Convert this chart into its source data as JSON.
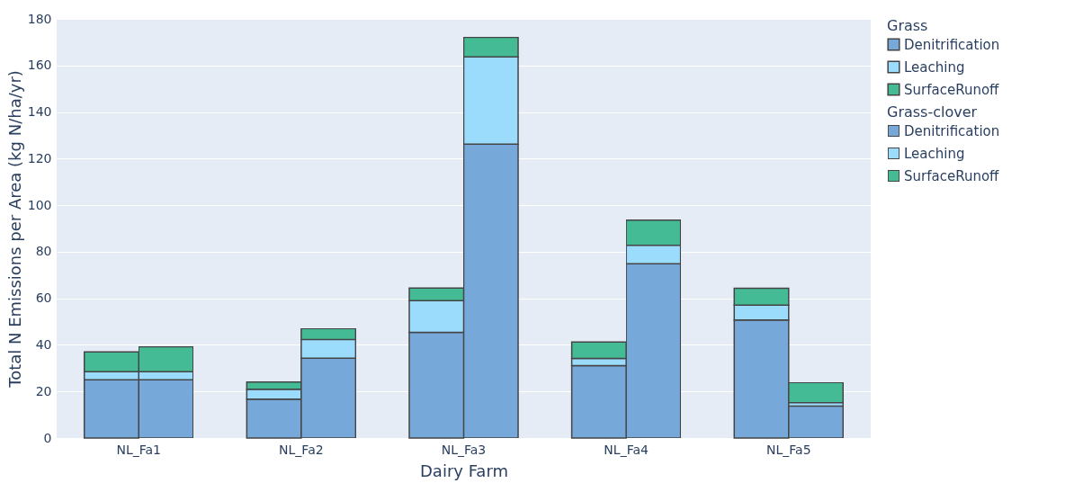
{
  "chart_data": {
    "type": "bar",
    "xlabel": "Dairy Farm",
    "ylabel": "Total N Emissions per Area (kg N/ha/yr)",
    "legend_title": [
      "Grass",
      "Grass-clover"
    ],
    "legend": "right",
    "grid": "y",
    "categories": [
      "NL_Fa1",
      "NL_Fa2",
      "NL_Fa3",
      "NL_Fa4",
      "NL_Fa5"
    ],
    "ylim": [
      0,
      180
    ],
    "yticks": [
      0,
      20,
      40,
      60,
      80,
      100,
      120,
      140,
      160,
      180
    ],
    "series": [
      {
        "name": "Denitrification",
        "color": "#77a8da",
        "values": [
          25,
          16.7,
          45.4,
          31.1,
          50.7
        ],
        "base": [
          0,
          0,
          0,
          0,
          0
        ]
      },
      {
        "name": "Leaching",
        "color": "#9bdcfd",
        "values": [
          3.5,
          4.3,
          13.6,
          3.1,
          6.4
        ],
        "base": [
          25,
          16.7,
          45.4,
          31.1,
          50.7
        ]
      },
      {
        "name": "SurfaceRunoff",
        "color": "#45bb95",
        "values": [
          8.5,
          3,
          5.4,
          7,
          7.2
        ],
        "base": [
          28.5,
          21,
          59,
          34.2,
          57.1
        ]
      },
      {
        "name": "Denitrification",
        "color": "#77a8da",
        "values": [
          25,
          34.3,
          126.2,
          74.8,
          13.7
        ],
        "base": [
          0,
          0,
          0,
          0,
          0
        ]
      },
      {
        "name": "Leaching",
        "color": "#9bdcfd",
        "values": [
          3.5,
          8,
          37.5,
          8,
          1.5
        ],
        "base": [
          25,
          34.3,
          126.2,
          74.8,
          13.7
        ]
      },
      {
        "name": "SurfaceRunoff",
        "color": "#45bb95",
        "values": [
          10.7,
          4.7,
          8.4,
          10.8,
          8.7
        ],
        "base": [
          28.5,
          42.3,
          163.7,
          82.8,
          15.2
        ]
      }
    ]
  }
}
